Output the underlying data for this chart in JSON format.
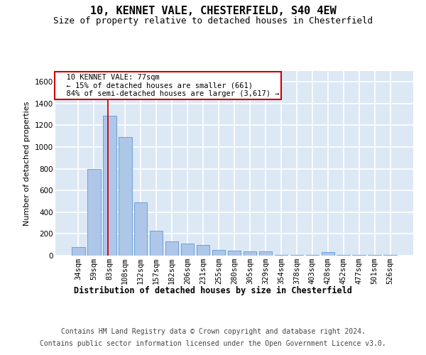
{
  "title1": "10, KENNET VALE, CHESTERFIELD, S40 4EW",
  "title2": "Size of property relative to detached houses in Chesterfield",
  "xlabel": "Distribution of detached houses by size in Chesterfield",
  "ylabel": "Number of detached properties",
  "footer1": "Contains HM Land Registry data © Crown copyright and database right 2024.",
  "footer2": "Contains public sector information licensed under the Open Government Licence v3.0.",
  "annotation_line1": "10 KENNET VALE: 77sqm",
  "annotation_line2": "← 15% of detached houses are smaller (661)",
  "annotation_line3": "84% of semi-detached houses are larger (3,617) →",
  "bar_color": "#aec6e8",
  "bar_edge_color": "#5b9bd5",
  "vline_color": "#cc0000",
  "annotation_box_color": "#cc0000",
  "categories": [
    "34sqm",
    "59sqm",
    "83sqm",
    "108sqm",
    "132sqm",
    "157sqm",
    "182sqm",
    "206sqm",
    "231sqm",
    "255sqm",
    "280sqm",
    "305sqm",
    "329sqm",
    "354sqm",
    "378sqm",
    "403sqm",
    "428sqm",
    "452sqm",
    "477sqm",
    "501sqm",
    "526sqm"
  ],
  "values": [
    80,
    800,
    1290,
    1090,
    490,
    230,
    130,
    110,
    100,
    55,
    45,
    40,
    38,
    5,
    5,
    5,
    30,
    5,
    5,
    5,
    5
  ],
  "ylim": [
    0,
    1700
  ],
  "yticks": [
    0,
    200,
    400,
    600,
    800,
    1000,
    1200,
    1400,
    1600
  ],
  "background_color": "#dde8f5",
  "grid_color": "#ffffff",
  "title_fontsize": 11,
  "subtitle_fontsize": 9,
  "axis_label_fontsize": 8,
  "tick_fontsize": 7.5,
  "annotation_fontsize": 7.5,
  "footer_fontsize": 7,
  "xlabel_fontsize": 8.5,
  "vline_x": 1.88
}
